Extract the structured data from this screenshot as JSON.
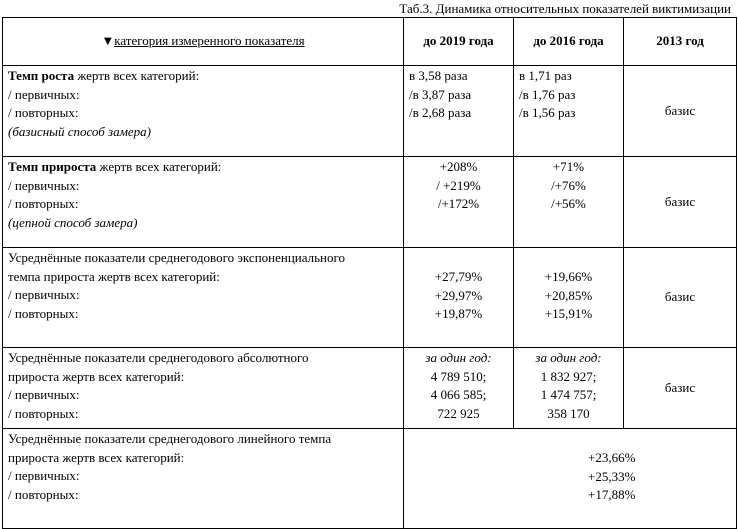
{
  "caption": "Таб.3. Динамика относительных показателей виктимизации",
  "header": {
    "marker": "▼",
    "category": "категория измеренного показателя",
    "col_2019": "до 2019 года",
    "col_2016": "до 2016 года",
    "col_2013": "2013 год"
  },
  "rows": [
    {
      "title_bold": "Темп роста",
      "title_rest": " жертв всех категорий:",
      "line2": "/ первичных:",
      "line3": "/ повторных:",
      "note": "(базисный способ замера)",
      "v2019": [
        "в 3,58 раза",
        "/в 3,87 раза",
        "/в 2,68 раза"
      ],
      "v2016": [
        "в 1,71 раз",
        "/в 1,76 раз",
        "/в 1,56 раз"
      ],
      "v2013": "базис"
    },
    {
      "title_bold": "Темп прироста",
      "title_rest": " жертв всех категорий:",
      "line2": "/ первичных:",
      "line3": "/ повторных:",
      "note": "(цепной способ замера)",
      "v2019": [
        "+208%",
        "/ +219%",
        "/+172%"
      ],
      "v2016": [
        "+71%",
        "/+76%",
        "/+56%"
      ],
      "v2013": "базис"
    },
    {
      "line1": "Усреднённые показатели среднегодового экспоненциального",
      "line2": "темпа прироста  жертв всех категорий:",
      "line3": "/ первичных:",
      "line4": "/ повторных:",
      "v2019": [
        "+27,79%",
        "+29,97%",
        "+19,87%"
      ],
      "v2016": [
        "+19,66%",
        "+20,85%",
        "+15,91%"
      ],
      "v2013": "базис"
    },
    {
      "line1": "Усреднённые показатели среднегодового абсолютного",
      "line2": "прироста жертв всех категорий:",
      "line3": "/ первичных:",
      "line4": "/ повторных:",
      "v2019_note": "за один год:",
      "v2019": [
        "4 789 510;",
        "4 066 585;",
        "722 925"
      ],
      "v2016_note": "за один год:",
      "v2016": [
        "1 832 927;",
        "1 474 757;",
        "358 170"
      ],
      "v2013": "базис"
    },
    {
      "line1": "Усреднённые показатели среднегодового линейного темпа",
      "line2": "прироста жертв всех категорий:",
      "line3": "/ первичных:",
      "line4": "/ повторных:",
      "values": [
        "+23,66%",
        "+25,33%",
        "+17,88%"
      ]
    }
  ]
}
